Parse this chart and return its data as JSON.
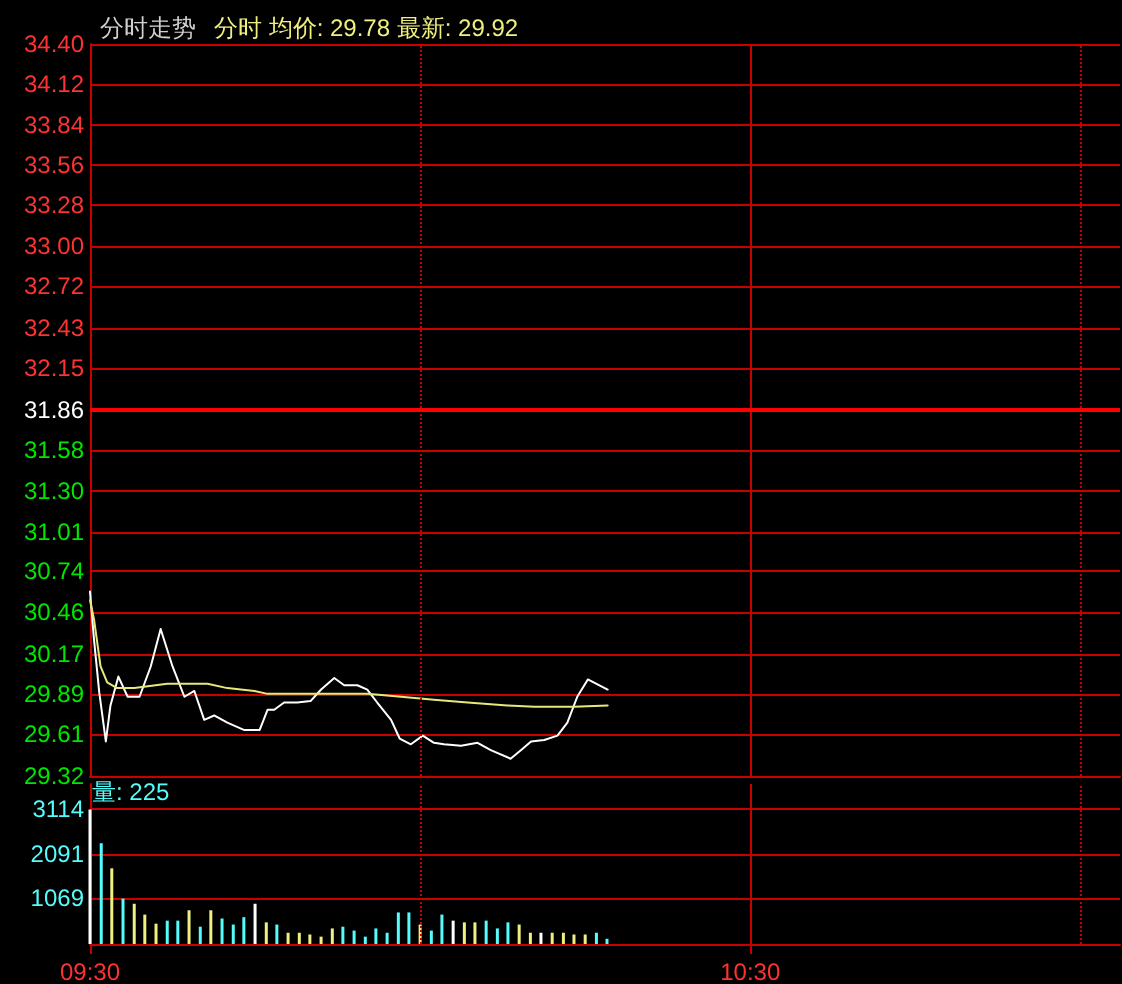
{
  "chart_data": [
    {
      "type": "line",
      "title": "分时走势",
      "subtitle": "分时 均价: 29.78 最新: 29.92",
      "xlim": [
        9.5,
        11.06
      ],
      "ylim": [
        29.32,
        34.4
      ],
      "yticks": [
        29.32,
        29.61,
        29.89,
        30.17,
        30.46,
        30.74,
        31.01,
        {
          "value": 31.3,
          "label": "31.30"
        },
        31.58,
        31.86,
        32.15,
        32.43,
        32.72,
        {
          "value": 33,
          "label": "33.00"
        },
        33.28,
        33.56,
        33.84,
        34.12,
        {
          "value": 34.4,
          "label": "34.40"
        }
      ],
      "grid": true,
      "tick_labels": "y",
      "marker": "none",
      "line_style": "solid",
      "ref_lines": [
        {
          "axis": "y",
          "value": 31.86,
          "color": "#ff0000"
        }
      ],
      "series": [
        {
          "color": "#ffffff",
          "x": [
            9.5,
            9.506,
            9.514,
            9.524,
            9.531,
            9.543,
            9.557,
            9.575,
            9.592,
            9.607,
            9.625,
            9.643,
            9.658,
            9.673,
            9.688,
            9.708,
            9.733,
            9.757,
            9.769,
            9.779,
            9.794,
            9.814,
            9.834,
            9.85,
            9.87,
            9.885,
            9.905,
            9.92,
            9.935,
            9.956,
            9.969,
            9.986,
            10.004,
            10.021,
            10.036,
            10.062,
            10.087,
            10.107,
            10.137,
            10.153,
            10.168,
            10.188,
            10.208,
            10.223,
            10.238,
            10.254,
            10.284
          ],
          "values": [
            30.6,
            30.27,
            29.9,
            29.56,
            29.81,
            30.01,
            29.87,
            29.87,
            30.08,
            30.34,
            30.08,
            29.87,
            29.91,
            29.71,
            29.74,
            29.69,
            29.64,
            29.64,
            29.78,
            29.78,
            29.83,
            29.83,
            29.84,
            29.92,
            30.0,
            29.95,
            29.95,
            29.92,
            29.83,
            29.71,
            29.58,
            29.54,
            29.6,
            29.55,
            29.54,
            29.53,
            29.55,
            29.5,
            29.44,
            29.5,
            29.56,
            29.57,
            29.6,
            29.69,
            29.87,
            29.99,
            29.92
          ]
        },
        {
          "color": "#e8e87a",
          "x": [
            9.5,
            9.506,
            9.516,
            9.526,
            9.541,
            9.567,
            9.617,
            9.678,
            9.708,
            9.749,
            9.769,
            9.85,
            9.92,
            9.971,
            10.021,
            10.072,
            10.132,
            10.173,
            10.233,
            10.284
          ],
          "values": [
            30.54,
            30.41,
            30.08,
            29.97,
            29.93,
            29.93,
            29.96,
            29.96,
            29.93,
            29.91,
            29.89,
            29.89,
            29.89,
            29.87,
            29.85,
            29.83,
            29.81,
            29.8,
            29.8,
            29.81
          ]
        }
      ]
    },
    {
      "type": "bar",
      "annotations": [
        "量: 225"
      ],
      "xlim": [
        9.5,
        11.06
      ],
      "xticks": [
        {
          "value": 9.5,
          "label": "09:30"
        },
        {
          "value": 10,
          "label": null
        },
        {
          "value": 10.5,
          "label": "10:30"
        },
        {
          "value": 11,
          "label": null
        }
      ],
      "ylim": [
        0,
        3700
      ],
      "yticks": [
        1069,
        2091,
        3114
      ],
      "grid": true,
      "series": [
        {
          "x": [
            9.5,
            9.517,
            9.533,
            9.55,
            9.567,
            9.583,
            9.6,
            9.617,
            9.633,
            9.65,
            9.667,
            9.683,
            9.7,
            9.717,
            9.733,
            9.75,
            9.767,
            9.783,
            9.8,
            9.817,
            9.833,
            9.85,
            9.867,
            9.883,
            9.9,
            9.917,
            9.933,
            9.95,
            9.967,
            9.983,
            10,
            10.017,
            10.033,
            10.05,
            10.067,
            10.083,
            10.1,
            10.117,
            10.133,
            10.15,
            10.167,
            10.183,
            10.2,
            10.217,
            10.233,
            10.25,
            10.267,
            10.283
          ],
          "values": [
            3110,
            2330,
            1750,
            1050,
            930,
            680,
            470,
            540,
            540,
            780,
            400,
            780,
            590,
            450,
            620,
            930,
            500,
            450,
            260,
            260,
            220,
            170,
            360,
            400,
            310,
            170,
            360,
            260,
            730,
            730,
            450,
            310,
            680,
            540,
            500,
            500,
            540,
            360,
            500,
            450,
            260,
            260,
            260,
            260,
            220,
            220,
            260,
            120
          ],
          "colors": [
            "#ffffff",
            "#54fcfc",
            "#f0f080",
            "#54fcfc",
            "#f0f080",
            "#f0f080",
            "#f0f080",
            "#54fcfc",
            "#54fcfc",
            "#f0f080",
            "#54fcfc",
            "#f0f080",
            "#54fcfc",
            "#54fcfc",
            "#54fcfc",
            "#ffffff",
            "#f0f080",
            "#54fcfc",
            "#f0f080",
            "#f0f080",
            "#f0f080",
            "#f0f080",
            "#f0f080",
            "#54fcfc",
            "#54fcfc",
            "#54fcfc",
            "#54fcfc",
            "#54fcfc",
            "#54fcfc",
            "#54fcfc",
            "#f0f080",
            "#54fcfc",
            "#54fcfc",
            "#ffffff",
            "#f0f080",
            "#f0f080",
            "#54fcfc",
            "#54fcfc",
            "#54fcfc",
            "#f0f080",
            "#f0f080",
            "#ffffff",
            "#f0f080",
            "#f0f080",
            "#f0f080",
            "#f0f080",
            "#54fcfc",
            "#54fcfc"
          ]
        }
      ]
    }
  ]
}
